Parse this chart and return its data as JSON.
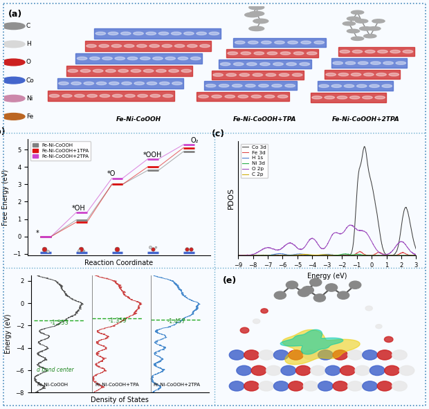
{
  "panel_b": {
    "xlabel": "Reaction Coordinate",
    "ylabel": "Free Energy (eV)",
    "ylim": [
      -1.1,
      5.6
    ],
    "step_labels": [
      "*",
      "*OH",
      "*O",
      "*OOH",
      "O₂"
    ],
    "series": [
      {
        "label": "Fe-Ni-CoOOH",
        "color": "#808080",
        "values": [
          0.0,
          0.95,
          3.0,
          3.8,
          4.88
        ]
      },
      {
        "label": "Fe-Ni-CoOOH+1TPA",
        "color": "#dd1111",
        "values": [
          0.0,
          0.82,
          3.0,
          4.0,
          5.1
        ]
      },
      {
        "label": "Fe-Ni-CoOOH+2TPA",
        "color": "#cc44cc",
        "values": [
          0.0,
          1.38,
          3.35,
          4.45,
          5.28
        ]
      }
    ]
  },
  "panel_c": {
    "xlabel": "Energy (eV)",
    "ylabel": "PDOS",
    "xlim": [
      -9,
      3
    ],
    "legend": [
      "Co 3d",
      "Fe 3d",
      "H 1s",
      "Ni 3d",
      "O 2p",
      "C 2p"
    ],
    "legend_colors": [
      "#404040",
      "#dd4444",
      "#4477cc",
      "#22aa44",
      "#9944bb",
      "#ccaa00"
    ]
  },
  "panel_d": {
    "xlabel": "Density of States",
    "ylabel": "Energy (eV)",
    "ylim": [
      -8,
      2.5
    ],
    "d_band_centers": [
      -1.533,
      -1.359,
      -1.457
    ],
    "labels": [
      "Fe-Ni-CoOOH",
      "Fe-Ni-CoOOH+TPA",
      "Fe-Ni-CoOOH+2TPA"
    ],
    "colors": [
      "#555555",
      "#cc4444",
      "#4488cc"
    ]
  },
  "outer_border_color": "#4488bb",
  "inner_border_color": "#66aacc",
  "bg_color": "#f8fbff",
  "legend_a": {
    "items": [
      "C",
      "H",
      "O",
      "Co",
      "Ni",
      "Fe"
    ],
    "colors": [
      "#909090",
      "#d8d8d8",
      "#cc2020",
      "#4466cc",
      "#cc88aa",
      "#bb6622"
    ]
  }
}
